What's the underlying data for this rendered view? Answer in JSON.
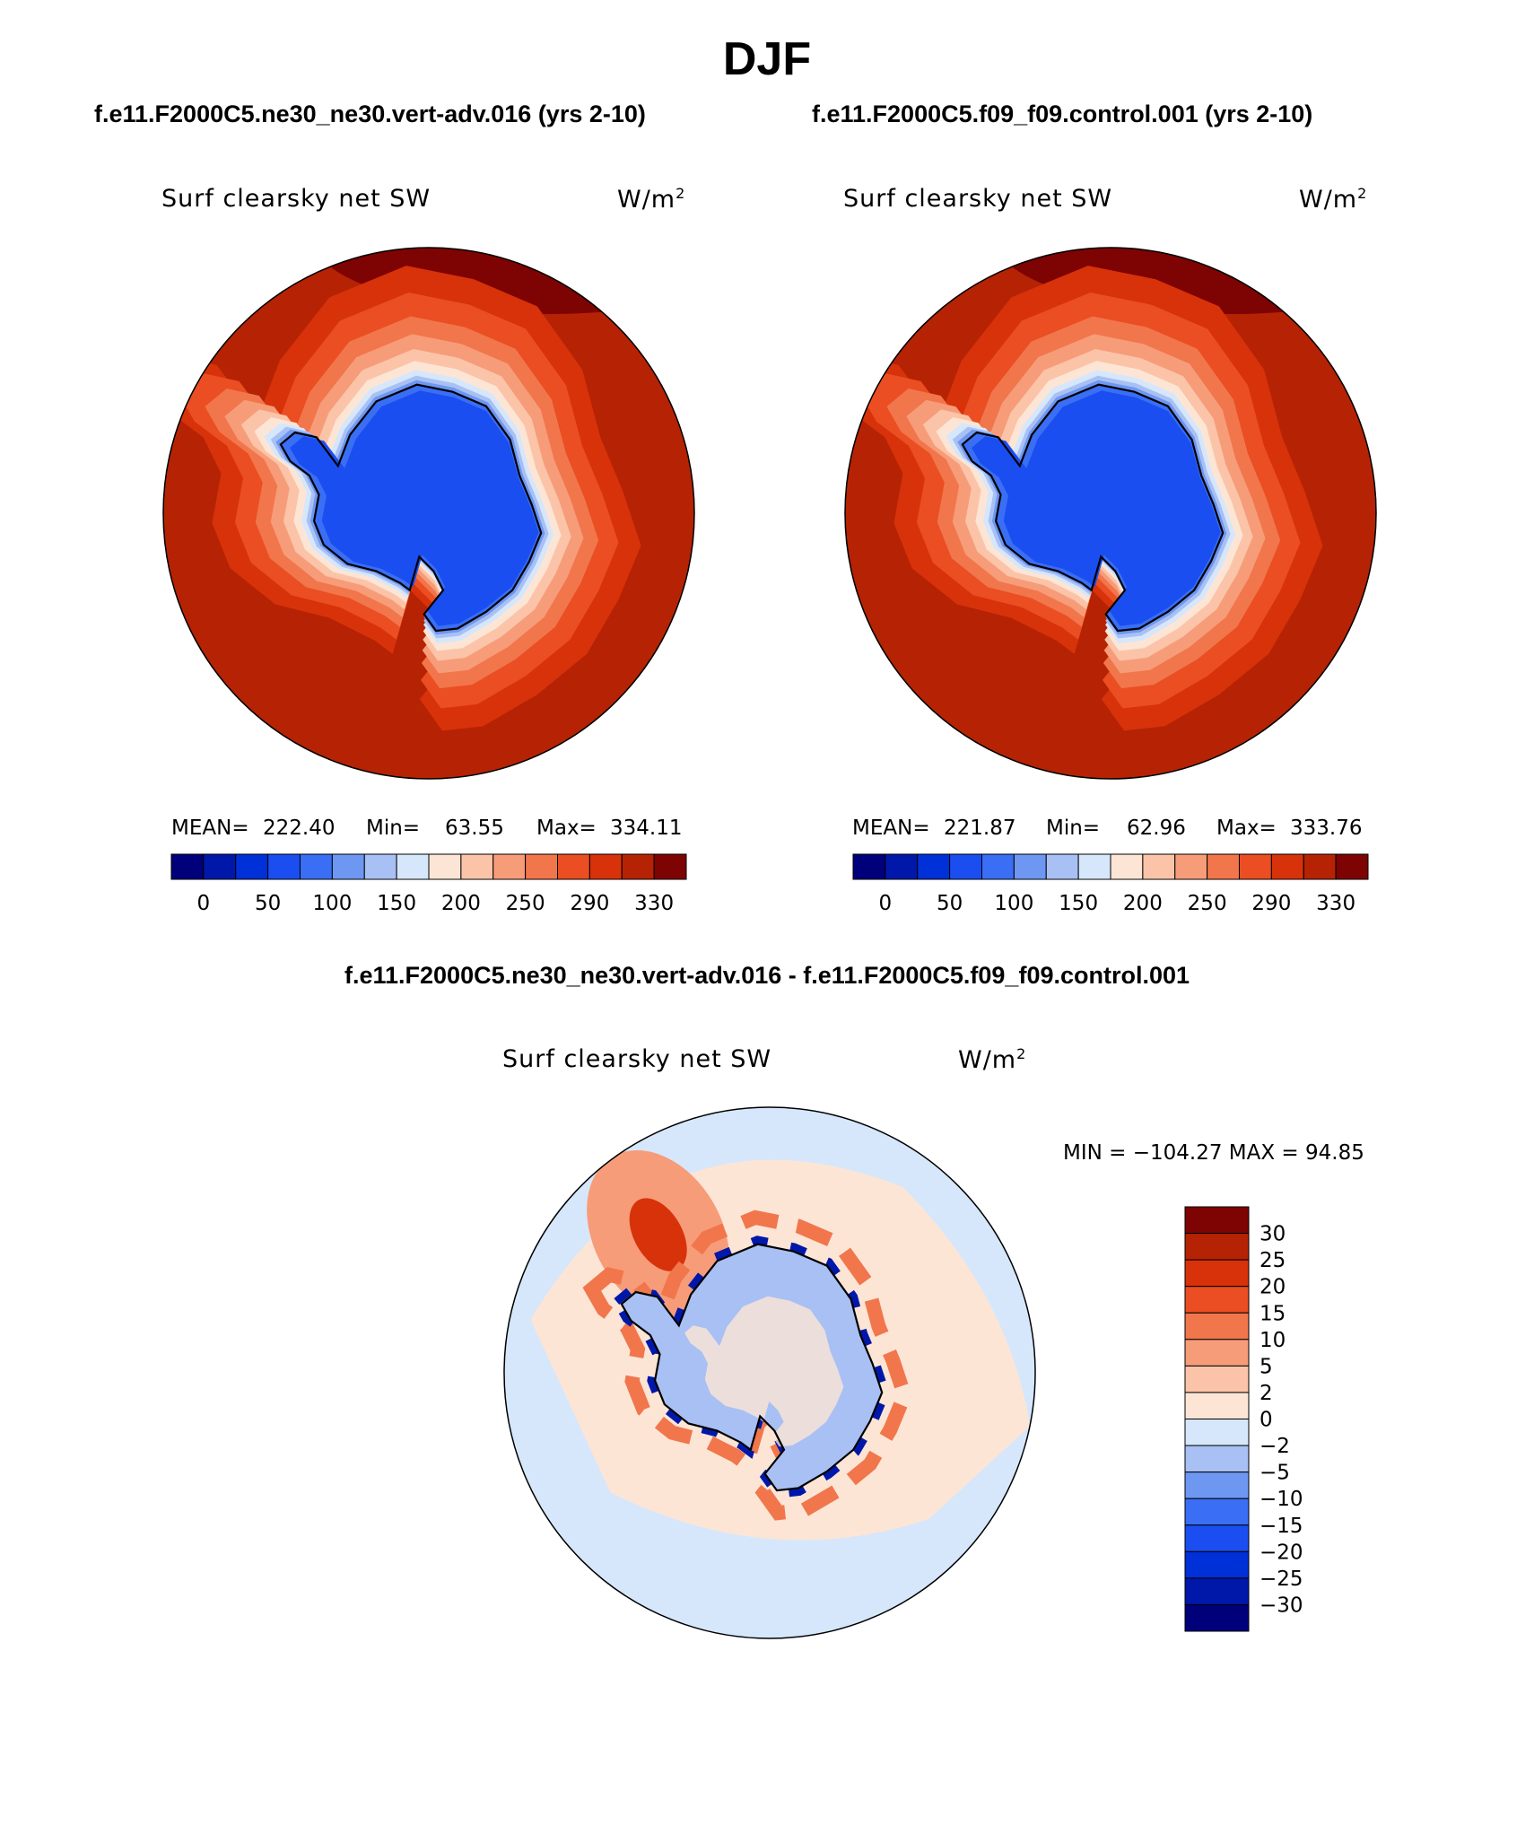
{
  "title": "DJF",
  "case1_title": "f.e11.F2000C5.ne30_ne30.vert-adv.016 (yrs 2-10)",
  "case2_title": "f.e11.F2000C5.f09_f09.control.001 (yrs 2-10)",
  "diff_title": "f.e11.F2000C5.ne30_ne30.vert-adv.016 - f.e11.F2000C5.f09_f09.control.001",
  "colors": {
    "levels": [
      "#00007a",
      "#0018aa",
      "#0030d8",
      "#1a4ef0",
      "#3a6ef4",
      "#6e97f2",
      "#a8c0f4",
      "#d6e7fb",
      "#fde5d5",
      "#fbc4a8",
      "#f79c79",
      "#f1764c",
      "#ea4e22",
      "#d8320a",
      "#b52304",
      "#7e0303"
    ],
    "coast": "#000000"
  },
  "chart_data": [
    {
      "type": "heatmap",
      "projection": "south-polar-stereographic",
      "title": "Surf clearsky net SW",
      "units": "W/m²",
      "units_text": "W/m",
      "units_sup": "2",
      "stats": {
        "mean_label": "MEAN=",
        "mean": "222.40",
        "min_label": "Min=",
        "min": "63.55",
        "max_label": "Max=",
        "max": "334.11"
      },
      "colorbar_levels": [
        "0",
        "50",
        "100",
        "150",
        "200",
        "250",
        "290",
        "330"
      ],
      "colorbar_orientation": "horizontal"
    },
    {
      "type": "heatmap",
      "projection": "south-polar-stereographic",
      "title": "Surf clearsky net SW",
      "units": "W/m²",
      "units_text": "W/m",
      "units_sup": "2",
      "stats": {
        "mean_label": "MEAN=",
        "mean": "221.87",
        "min_label": "Min=",
        "min": "62.96",
        "max_label": "Max=",
        "max": "333.76"
      },
      "colorbar_levels": [
        "0",
        "50",
        "100",
        "150",
        "200",
        "250",
        "290",
        "330"
      ],
      "colorbar_orientation": "horizontal"
    },
    {
      "type": "heatmap",
      "projection": "south-polar-stereographic",
      "title": "Surf clearsky net SW",
      "units": "W/m²",
      "units_text": "W/m",
      "units_sup": "2",
      "stats_line": "MIN = −104.27 MAX =   94.85",
      "stats": {
        "min": "-104.27",
        "max": "94.85"
      },
      "colorbar_levels": [
        "30",
        "25",
        "20",
        "15",
        "10",
        "5",
        "2",
        "0",
        "−2",
        "−5",
        "−10",
        "−15",
        "−20",
        "−25",
        "−30"
      ],
      "colorbar_orientation": "vertical"
    }
  ]
}
